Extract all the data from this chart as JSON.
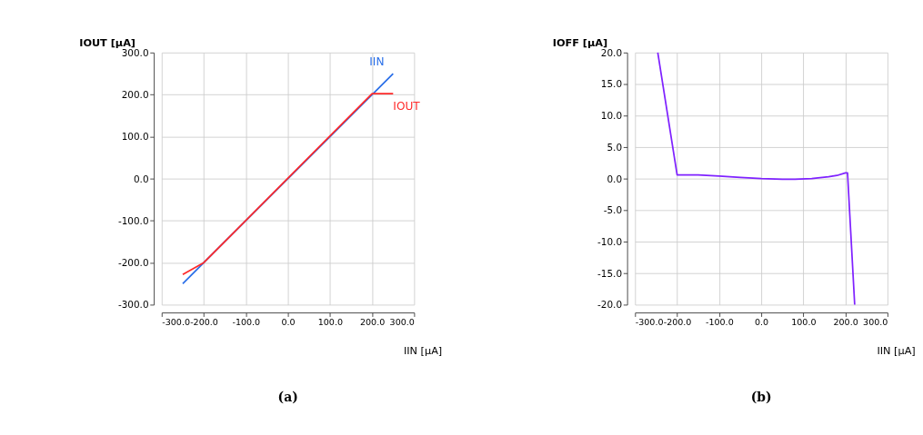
{
  "chart_data": [
    {
      "type": "line",
      "title": "(a)",
      "xlabel": "IIN [μA]",
      "ylabel": "IOUT [μA]",
      "grid": true,
      "line_style": "solid",
      "xlim": [
        -300,
        300
      ],
      "ylim": [
        -300,
        300
      ],
      "xticks": [
        {
          "value": -300,
          "label": "-300.0"
        },
        {
          "value": -200,
          "label": "-200.0"
        },
        {
          "value": -100,
          "label": "-100.0"
        },
        {
          "value": 0,
          "label": "0.0"
        },
        {
          "value": 100,
          "label": "100.0"
        },
        {
          "value": 200,
          "label": "200.0"
        },
        {
          "value": 300,
          "label": "300.0"
        }
      ],
      "yticks": [
        {
          "value": -300,
          "label": "-300.0"
        },
        {
          "value": -200,
          "label": "-200.0"
        },
        {
          "value": -100,
          "label": "-100.0"
        },
        {
          "value": 0,
          "label": "0.0"
        },
        {
          "value": 100,
          "label": "100.0"
        },
        {
          "value": 200,
          "label": "200.0"
        },
        {
          "value": 300,
          "label": "300.0"
        }
      ],
      "series": [
        {
          "name": "IIN",
          "color": "#2a6fe8",
          "x": [
            -250,
            250
          ],
          "values": [
            -250,
            250
          ]
        },
        {
          "name": "IOUT",
          "color": "#ff2a2a",
          "x": [
            -250,
            -200,
            200,
            250
          ],
          "values": [
            -228,
            -200,
            202,
            202
          ]
        }
      ]
    },
    {
      "type": "line",
      "title": "(b)",
      "xlabel": "IIN [μA]",
      "ylabel": "IOFF [μA]",
      "grid": true,
      "line_style": "solid",
      "xlim": [
        -300,
        300
      ],
      "ylim": [
        -20,
        20
      ],
      "xticks": [
        {
          "value": -300,
          "label": "-300.0"
        },
        {
          "value": -200,
          "label": "-200.0"
        },
        {
          "value": -100,
          "label": "-100.0"
        },
        {
          "value": 0,
          "label": "0.0"
        },
        {
          "value": 100,
          "label": "100.0"
        },
        {
          "value": 200,
          "label": "200.0"
        },
        {
          "value": 300,
          "label": "300.0"
        }
      ],
      "yticks": [
        {
          "value": -20,
          "label": "-20.0"
        },
        {
          "value": -15,
          "label": "-15.0"
        },
        {
          "value": -10,
          "label": "-10.0"
        },
        {
          "value": -5,
          "label": "-5.0"
        },
        {
          "value": 0,
          "label": "0.0"
        },
        {
          "value": 5,
          "label": "5.0"
        },
        {
          "value": 10,
          "label": "10.0"
        },
        {
          "value": 15,
          "label": "15.0"
        },
        {
          "value": 20,
          "label": "20.0"
        }
      ],
      "series": [
        {
          "color": "#7f22ff",
          "x": [
            -246,
            -200,
            -150,
            -100,
            -50,
            0,
            50,
            80,
            120,
            160,
            180,
            200,
            205,
            222
          ],
          "values": [
            20,
            0.6,
            0.6,
            0.4,
            0.2,
            0.0,
            -0.1,
            -0.1,
            0.0,
            0.3,
            0.5,
            0.9,
            0.9,
            -20
          ]
        }
      ]
    }
  ]
}
